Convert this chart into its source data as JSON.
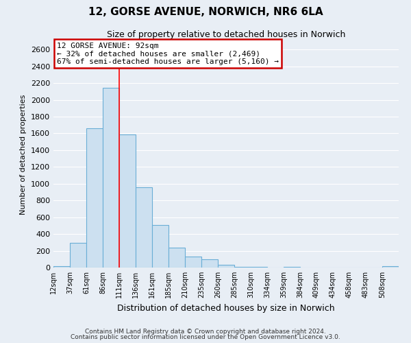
{
  "title1": "12, GORSE AVENUE, NORWICH, NR6 6LA",
  "title2": "Size of property relative to detached houses in Norwich",
  "xlabel": "Distribution of detached houses by size in Norwich",
  "ylabel": "Number of detached properties",
  "bin_labels": [
    "12sqm",
    "37sqm",
    "61sqm",
    "86sqm",
    "111sqm",
    "136sqm",
    "161sqm",
    "185sqm",
    "210sqm",
    "235sqm",
    "260sqm",
    "285sqm",
    "310sqm",
    "334sqm",
    "359sqm",
    "384sqm",
    "409sqm",
    "434sqm",
    "458sqm",
    "483sqm",
    "508sqm"
  ],
  "bar_heights": [
    20,
    295,
    1660,
    2140,
    1585,
    955,
    505,
    240,
    130,
    100,
    30,
    5,
    5,
    0,
    5,
    0,
    0,
    0,
    0,
    0,
    20
  ],
  "bar_color": "#cce0f0",
  "bar_edge_color": "#6aaed6",
  "bar_linewidth": 0.8,
  "red_line_index": 4,
  "annotation_title": "12 GORSE AVENUE: 92sqm",
  "annotation_line1": "← 32% of detached houses are smaller (2,469)",
  "annotation_line2": "67% of semi-detached houses are larger (5,160) →",
  "annotation_box_color": "#ffffff",
  "annotation_border_color": "#cc0000",
  "ylim": [
    0,
    2700
  ],
  "yticks": [
    0,
    200,
    400,
    600,
    800,
    1000,
    1200,
    1400,
    1600,
    1800,
    2000,
    2200,
    2400,
    2600
  ],
  "bg_color": "#e8eef5",
  "grid_color": "#ffffff",
  "footer1": "Contains HM Land Registry data © Crown copyright and database right 2024.",
  "footer2": "Contains public sector information licensed under the Open Government Licence v3.0."
}
